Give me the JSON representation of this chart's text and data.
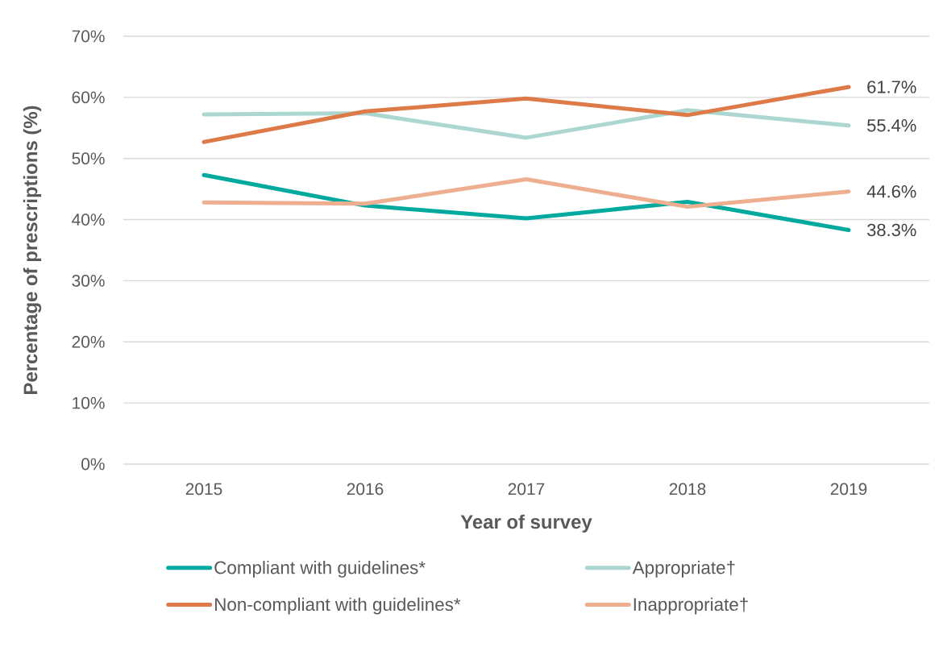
{
  "chart_data": {
    "type": "line",
    "xlabel": "Year of survey",
    "ylabel": "Percentage of prescriptions (%)",
    "categories": [
      "2015",
      "2016",
      "2017",
      "2018",
      "2019"
    ],
    "series": [
      {
        "name": "Compliant with guidelines*",
        "color": "#00a99d",
        "values": [
          47.3,
          42.3,
          40.2,
          42.9,
          38.3
        ],
        "value_labels": [
          null,
          null,
          null,
          null,
          "38.3%"
        ]
      },
      {
        "name": "Appropriate†",
        "color": "#acd6d0",
        "values": [
          57.2,
          57.4,
          53.4,
          57.9,
          55.4
        ],
        "value_labels": [
          null,
          null,
          null,
          null,
          "55.4%"
        ]
      },
      {
        "name": "Non-compliant with guidelines*",
        "color": "#dd7a48",
        "values": [
          52.7,
          57.7,
          59.8,
          57.1,
          61.7
        ],
        "value_labels": [
          null,
          null,
          null,
          null,
          "61.7%"
        ]
      },
      {
        "name": "Inappropriate†",
        "color": "#eeae90",
        "values": [
          42.8,
          42.6,
          46.6,
          42.1,
          44.6
        ],
        "value_labels": [
          null,
          null,
          null,
          null,
          "44.6%"
        ]
      }
    ],
    "ylim": [
      0,
      70
    ],
    "yticks": [
      {
        "value": 0,
        "label": "0%"
      },
      {
        "value": 10,
        "label": "10%"
      },
      {
        "value": 20,
        "label": "20%"
      },
      {
        "value": 30,
        "label": "30%"
      },
      {
        "value": 40,
        "label": "40%"
      },
      {
        "value": 50,
        "label": "50%"
      },
      {
        "value": 60,
        "label": "60%"
      },
      {
        "value": 70,
        "label": "70%"
      }
    ],
    "grid": "y",
    "legend": "bottom",
    "marker": "none",
    "line_style": "solid"
  }
}
